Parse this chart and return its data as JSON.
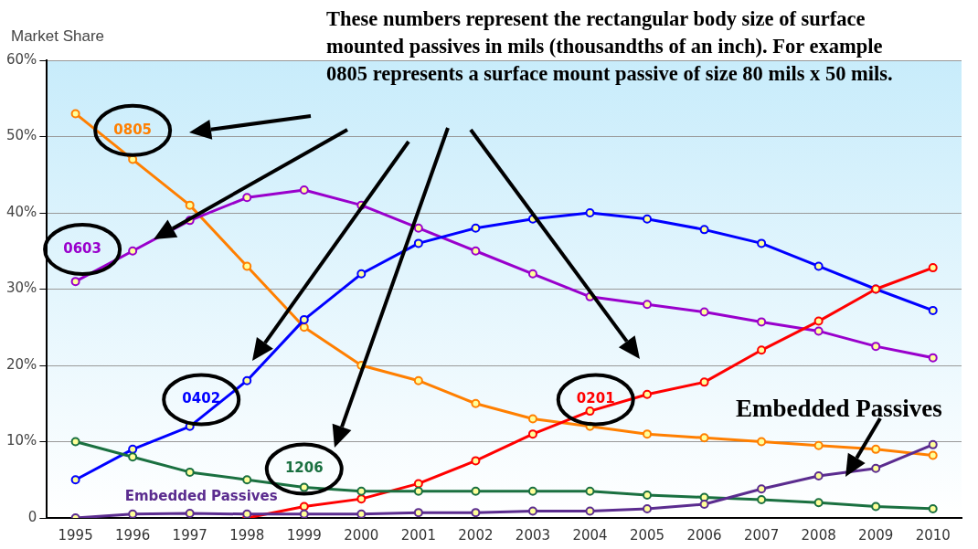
{
  "chart_data": {
    "type": "line",
    "ylabel": "Market Share",
    "categories": [
      "1995",
      "1996",
      "1997",
      "1998",
      "1999",
      "2000",
      "2001",
      "2002",
      "2003",
      "2004",
      "2005",
      "2006",
      "2007",
      "2008",
      "2009",
      "2010"
    ],
    "series": [
      {
        "name": "0805",
        "color": "#ff7f00",
        "values": [
          53,
          47,
          41,
          33,
          25,
          20,
          18,
          15,
          13,
          12,
          11,
          10.5,
          10,
          9.5,
          9,
          8.2
        ]
      },
      {
        "name": "0603",
        "color": "#9900cc",
        "values": [
          31,
          35,
          39,
          42,
          43,
          41,
          38,
          35,
          32,
          29,
          28,
          27,
          25.7,
          24.5,
          22.5,
          21
        ]
      },
      {
        "name": "0402",
        "color": "#0000ff",
        "values": [
          5,
          9,
          12,
          18,
          26,
          32,
          36,
          38,
          39.2,
          40,
          39.2,
          37.8,
          36,
          33,
          30,
          27.2
        ]
      },
      {
        "name": "0201",
        "color": "#ff0000",
        "values": [
          null,
          null,
          null,
          0,
          1.5,
          2.5,
          4.5,
          7.5,
          11,
          14,
          16.2,
          17.8,
          22,
          25.8,
          30,
          32.8
        ]
      },
      {
        "name": "1206",
        "color": "#1a7040",
        "values": [
          10,
          8,
          6,
          5,
          4,
          3.5,
          3.5,
          3.5,
          3.5,
          3.5,
          3,
          2.7,
          2.4,
          2,
          1.5,
          1.2
        ]
      },
      {
        "name": "Embedded Passives",
        "color": "#5b2c8f",
        "values": [
          0,
          0.5,
          0.6,
          0.5,
          0.5,
          0.5,
          0.7,
          0.7,
          0.9,
          0.9,
          1.2,
          1.8,
          3.8,
          5.5,
          6.5,
          9.6
        ]
      }
    ],
    "ylim": [
      0,
      60
    ],
    "yticks": [
      {
        "value": 0,
        "label": "0"
      },
      {
        "value": 10,
        "label": "10%"
      },
      {
        "value": 20,
        "label": "20%"
      },
      {
        "value": 30,
        "label": "30%"
      },
      {
        "value": 40,
        "label": "40%"
      },
      {
        "value": 50,
        "label": "50%"
      },
      {
        "value": 60,
        "label": "60%"
      }
    ],
    "grid": "y",
    "marker": "circle",
    "legend": false,
    "annotations": [
      "These numbers represent the rectangular body size of surface mounted passives in mils (thousandths of an inch). For example 0805 represents a surface mount passive of size 80 mils x 50 mils.",
      "Embedded Passives"
    ]
  }
}
